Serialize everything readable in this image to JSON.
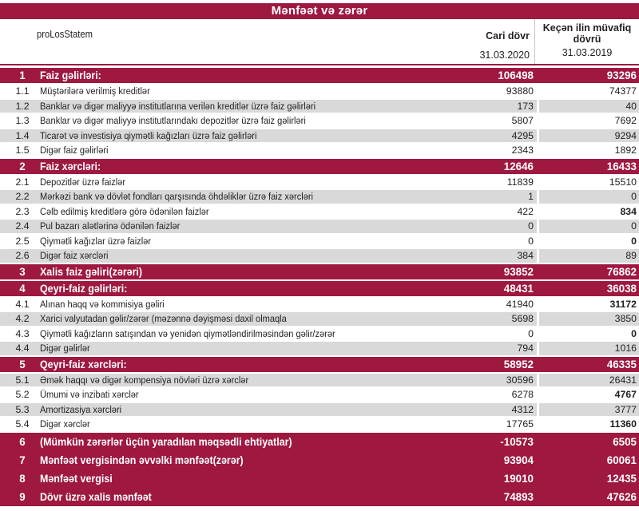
{
  "title": "Mənfəət və zərər",
  "header": {
    "label": "proLosStatem",
    "col1_title": "Cari dövr",
    "col1_date": "31.03.2020",
    "col2_title": "Keçən ilin müvafiq dövrü",
    "col2_date": "31.03.2019"
  },
  "colors": {
    "maroon": "#9E1840",
    "shaded_row": "#D9D9D9",
    "text": "#1F1F1F",
    "header_divider": "#C4C4C4"
  },
  "rows": [
    {
      "num": "1",
      "label": "Faiz gəlirləri:",
      "v1": "106498",
      "v2": "93296",
      "type": "section"
    },
    {
      "num": "1.1",
      "label": "Müştərilərə verilmiş kreditlər",
      "v1": "93880",
      "v2": "74377",
      "type": "data",
      "shade": false
    },
    {
      "num": "1.2",
      "label": "Banklar və digər maliyyə institutlarına verilən kreditlər üzrə faiz gəlirləri",
      "v1": "173",
      "v2": "40",
      "type": "data",
      "shade": true
    },
    {
      "num": "1.3",
      "label": "Banklar və digər maliyyə institutlarındakı depozitlər üzrə faiz gəlirləri",
      "v1": "5807",
      "v2": "7692",
      "type": "data",
      "shade": false
    },
    {
      "num": "1.4",
      "label": "Ticarət və investisiya qiymətli kağızları üzrə faiz gəlirləri",
      "v1": "4295",
      "v2": "9294",
      "type": "data",
      "shade": true
    },
    {
      "num": "1.5",
      "label": "Digər faiz gəlirləri",
      "v1": "2343",
      "v2": "1892",
      "type": "data",
      "shade": false
    },
    {
      "num": "2",
      "label": "Faiz xərcləri:",
      "v1": "12646",
      "v2": "16433",
      "type": "section"
    },
    {
      "num": "2.1",
      "label": "Depozitlər üzrə faizlər",
      "v1": "11839",
      "v2": "15510",
      "type": "data",
      "shade": false
    },
    {
      "num": "2.2",
      "label": "Mərkəzi bank və dövlət fondları qarşısında öhdəliklər üzrə faiz xərcləri",
      "v1": "1",
      "v2": "0",
      "type": "data",
      "shade": true
    },
    {
      "num": "2.3",
      "label": "Cəlb edilmiş kreditlərə görə ödənilən faizlər",
      "v1": "422",
      "v2": "834",
      "type": "data",
      "shade": false,
      "b2": true
    },
    {
      "num": "2.4",
      "label": "Pul bazarı alətlərinə ödənilən faizlər",
      "v1": "0",
      "v2": "0",
      "type": "data",
      "shade": true
    },
    {
      "num": "2.5",
      "label": "Qiymətli kağızlar üzrə faizlər",
      "v1": "0",
      "v2": "0",
      "type": "data",
      "shade": false,
      "b2": true
    },
    {
      "num": "2.6",
      "label": "Digər faiz xərcləri",
      "v1": "384",
      "v2": "89",
      "type": "data",
      "shade": true
    },
    {
      "num": "3",
      "label": "Xalis faiz gəliri(zərəri)",
      "v1": "93852",
      "v2": "76862",
      "type": "section"
    },
    {
      "num": "4",
      "label": "Qeyri-faiz gəlirləri:",
      "v1": "48431",
      "v2": "36038",
      "type": "section"
    },
    {
      "num": "4.1",
      "label": "Alınan haqq və kommisiya gəliri",
      "v1": "41940",
      "v2": "31172",
      "type": "data",
      "shade": false,
      "b2": true
    },
    {
      "num": "4.2",
      "label": "Xarici valyutadan gəlir/zərər (məzənnə dəyişməsi daxil olmaqla",
      "v1": "5698",
      "v2": "3850",
      "type": "data",
      "shade": true
    },
    {
      "num": "4.3",
      "label": "Qiymətli kağızların satışından və yenidən qiymətləndirilməsindən gəlir/zərər",
      "v1": "0",
      "v2": "0",
      "type": "data",
      "shade": false,
      "b2": true
    },
    {
      "num": "4.4",
      "label": "Digər gəlirlər",
      "v1": "794",
      "v2": "1016",
      "type": "data",
      "shade": true
    },
    {
      "num": "5",
      "label": "Qeyri-faiz xərcləri:",
      "v1": "58952",
      "v2": "46335",
      "type": "section"
    },
    {
      "num": "5.1",
      "label": "Əmək haqqı və digər kompensiya növləri üzrə xərclər",
      "v1": "30596",
      "v2": "26431",
      "type": "data",
      "shade": true
    },
    {
      "num": "5.2",
      "label": "Ümumi və inzibati xərclər",
      "v1": "6278",
      "v2": "4767",
      "type": "data",
      "shade": false,
      "b2": true
    },
    {
      "num": "5.3",
      "label": "Amortizasiya xərcləri",
      "v1": "4312",
      "v2": "3777",
      "type": "data",
      "shade": true
    },
    {
      "num": "5.4",
      "label": "Digər xərclər",
      "v1": "17765",
      "v2": "11360",
      "type": "data",
      "shade": false,
      "b2": true
    },
    {
      "num": "6",
      "label": "(Mümkün zərərlər üçün yaradılan məqsədli ehtiyatlar)",
      "v1": "-10573",
      "v2": "6505",
      "type": "final"
    },
    {
      "num": "7",
      "label": "Mənfəət vergisindən əvvəlki mənfəət(zərər)",
      "v1": "93904",
      "v2": "60061",
      "type": "final"
    },
    {
      "num": "8",
      "label": "Mənfəət vergisi",
      "v1": "19010",
      "v2": "12435",
      "type": "final"
    },
    {
      "num": "9",
      "label": "Dövr üzrə xalis mənfəət",
      "v1": "74893",
      "v2": "47626",
      "type": "final"
    }
  ]
}
